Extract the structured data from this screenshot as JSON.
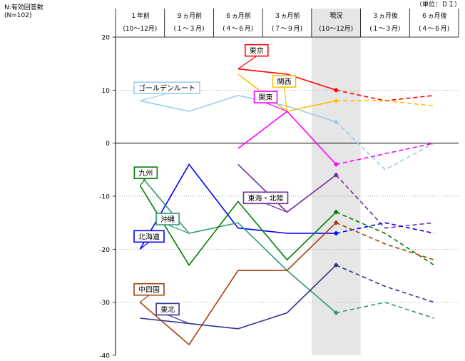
{
  "header": {
    "respondents_label": "N:有効回答数",
    "respondents_count": "(N=102)",
    "unit": "（単位：ＤＩ）"
  },
  "chart_data": {
    "type": "line",
    "categories": [
      {
        "line1": "１年前",
        "line2": "(10～12月)"
      },
      {
        "line1": "９ヵ月前",
        "line2": "(１～３月)"
      },
      {
        "line1": "６ヵ月前",
        "line2": "(４～６月)"
      },
      {
        "line1": "３ヵ月前",
        "line2": "(７～９月)"
      },
      {
        "line1": "現況",
        "line2": "(10～12月)"
      },
      {
        "line1": "３ヵ月後",
        "line2": "(１～３月)"
      },
      {
        "line1": "６ヵ月後",
        "line2": "(４～６月)"
      }
    ],
    "highlight_category": 4,
    "actual_through_index": 4,
    "forecast_line_style": "dashed",
    "ylim": [
      -40,
      20
    ],
    "yticks": [
      20,
      10,
      0,
      -10,
      -20,
      -30,
      -40
    ],
    "zero_line": "solid",
    "grid": "dotted horizontal",
    "series": [
      {
        "name": "東京",
        "color": "#ff0000",
        "values": [
          null,
          null,
          14,
          13,
          10,
          8,
          9
        ],
        "label_pos": "top"
      },
      {
        "name": "関西",
        "color": "#ffc000",
        "values": [
          null,
          null,
          13,
          6,
          8,
          8,
          7
        ],
        "label_pos": "right"
      },
      {
        "name": "ゴールデンルート",
        "color": "#99ccee",
        "values": [
          8,
          6,
          9,
          7,
          4,
          -5,
          0
        ],
        "label_pos": "left"
      },
      {
        "name": "関東",
        "color": "#ff00ff",
        "values": [
          null,
          null,
          -1,
          6,
          -4,
          -2,
          0
        ],
        "label_pos": "center"
      },
      {
        "name": "東海・北陸",
        "color": "#7030a0",
        "values": [
          null,
          null,
          -4,
          -13,
          -6,
          -16,
          -15
        ],
        "label_pos": "center"
      },
      {
        "name": "北海道",
        "color": "#0000ff",
        "values": [
          -20,
          -4,
          -16,
          -17,
          -17,
          -15,
          -17
        ],
        "label_pos": "left"
      },
      {
        "name": "沖縄",
        "color": "#339977",
        "values": [
          -6,
          -17,
          -15,
          -24,
          -32,
          -30,
          -33
        ],
        "label_pos": "center"
      },
      {
        "name": "九州",
        "color": "#008000",
        "values": [
          -8,
          -23,
          -11,
          -22,
          -13,
          -17,
          -23
        ],
        "label_pos": "left"
      },
      {
        "name": "中四国",
        "color": "#a0400a",
        "values": [
          -30,
          -38,
          -24,
          -24,
          -15,
          -19,
          -22
        ],
        "label_pos": "left"
      },
      {
        "name": "東北",
        "color": "#333399",
        "values": [
          -33,
          -34,
          -35,
          -32,
          -23,
          -27,
          -30
        ],
        "label_pos": "center"
      }
    ]
  }
}
